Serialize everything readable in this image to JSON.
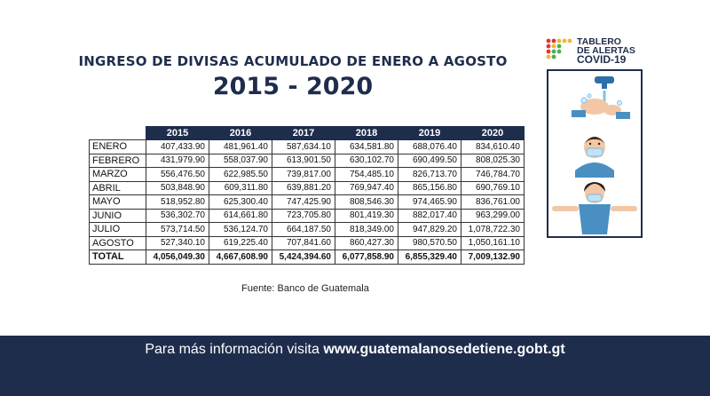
{
  "header": {
    "title": "INGRESO DE DIVISAS ACUMULADO DE ENERO A AGOSTO",
    "subtitle": "2015 - 2020"
  },
  "logo": {
    "line1": "TABLERO",
    "line2": "DE ALERTAS",
    "line3": "COVID-19"
  },
  "table": {
    "columns": [
      "2015",
      "2016",
      "2017",
      "2018",
      "2019",
      "2020"
    ],
    "rows": [
      {
        "month": "ENERO",
        "values": [
          "407,433.90",
          "481,961.40",
          "587,634.10",
          "634,581.80",
          "688,076.40",
          "834,610.40"
        ]
      },
      {
        "month": "FEBRERO",
        "values": [
          "431,979.90",
          "558,037.90",
          "613,901.50",
          "630,102.70",
          "690,499.50",
          "808,025.30"
        ]
      },
      {
        "month": "MARZO",
        "values": [
          "556,476.50",
          "622,985.50",
          "739,817.00",
          "754,485.10",
          "826,713.70",
          "746,784.70"
        ]
      },
      {
        "month": "ABRIL",
        "values": [
          "503,848.90",
          "609,311.80",
          "639,881.20",
          "769,947.40",
          "865,156.80",
          "690,769.10"
        ]
      },
      {
        "month": "MAYO",
        "values": [
          "518,952.80",
          "625,300.40",
          "747,425.90",
          "808,546.30",
          "974,465.90",
          "836,761.00"
        ]
      },
      {
        "month": "JUNIO",
        "values": [
          "536,302.70",
          "614,661.80",
          "723,705.80",
          "801,419.30",
          "882,017.40",
          "963,299.00"
        ]
      },
      {
        "month": "JULIO",
        "values": [
          "573,714.50",
          "536,124.70",
          "664,187.50",
          "818,349.00",
          "947,829.20",
          "1,078,722.30"
        ]
      },
      {
        "month": "AGOSTO",
        "values": [
          "527,340.10",
          "619,225.40",
          "707,841.60",
          "860,427.30",
          "980,570.50",
          "1,050,161.10"
        ]
      }
    ],
    "total": {
      "label": "TOTAL",
      "values": [
        "4,056,049.30",
        "4,667,608.90",
        "5,424,394.60",
        "6,077,858.90",
        "6,855,329.40",
        "7,009,132.90"
      ]
    }
  },
  "source": "Fuente: Banco de Guatemala",
  "footer": {
    "text": "Para más información visita ",
    "url": "www.guatemalanosedetiene.gobt.gt"
  },
  "colors": {
    "navy": "#1f2d4d",
    "skin": "#f2c7a6",
    "shirt": "#4a8fc2",
    "accent_red": "#e2352c",
    "accent_yellow": "#f2b632"
  }
}
